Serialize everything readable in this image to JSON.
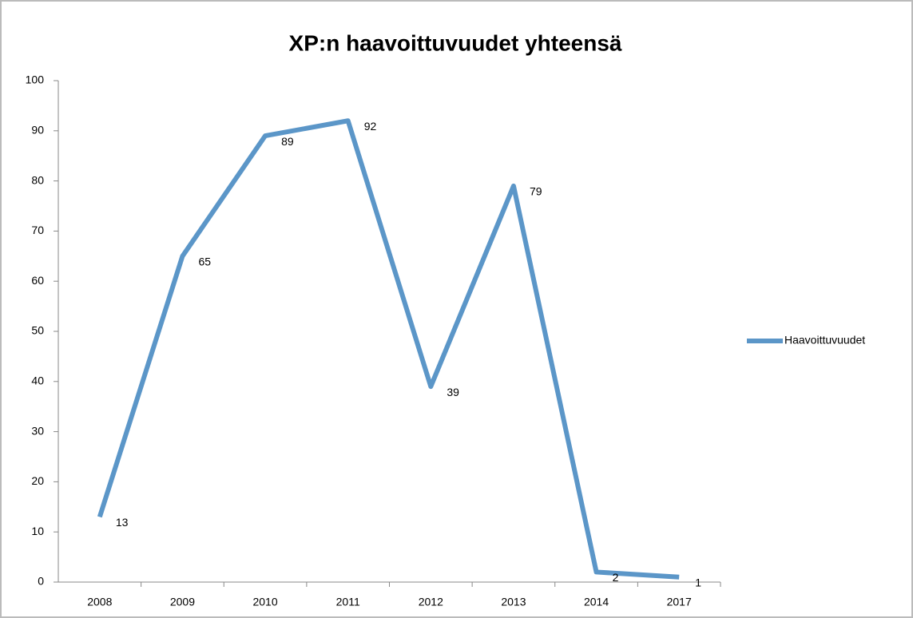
{
  "chart_data": {
    "type": "line",
    "title": "XP:n haavoittuvuudet yhteensä",
    "categories": [
      "2008",
      "2009",
      "2010",
      "2011",
      "2012",
      "2013",
      "2014",
      "2017"
    ],
    "series": [
      {
        "name": "Haavoittuvuudet",
        "color": "#5b96c8",
        "values": [
          13,
          65,
          89,
          92,
          39,
          79,
          2,
          1
        ]
      }
    ],
    "ylim": [
      0,
      100
    ],
    "yticks": [
      0,
      10,
      20,
      30,
      40,
      50,
      60,
      70,
      80,
      90,
      100
    ],
    "grid": false,
    "legend": "right",
    "data_labels": true
  }
}
